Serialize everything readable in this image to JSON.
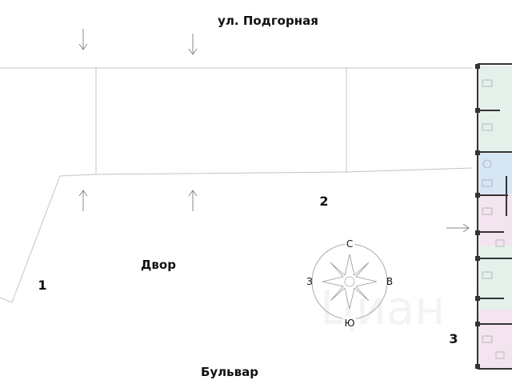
{
  "labels": {
    "street_top": "ул. Подгорная",
    "yard": "Двор",
    "boulevard": "Бульвар",
    "entrance_1": "1",
    "entrance_2": "2",
    "entrance_3": "3"
  },
  "compass": {
    "north": "С",
    "south": "Ю",
    "west": "З",
    "east": "В"
  },
  "watermark": "Циан",
  "colors": {
    "line": "#bdbdbd",
    "apt_green": "#e3f1ea",
    "apt_blue": "#d6e6f5",
    "apt_pink": "#f3e4ef",
    "wall": "#333333"
  }
}
